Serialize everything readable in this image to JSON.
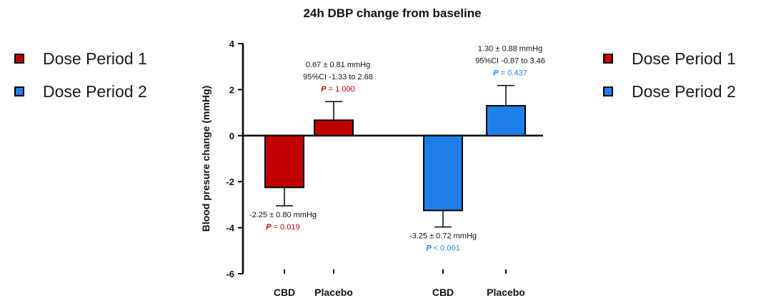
{
  "chart_data": {
    "type": "bar",
    "title": "24h DBP change from baseline",
    "xlabel": "",
    "ylabel": "Blood presure change (mmHg)",
    "ylim": [
      -6,
      4
    ],
    "yticks": [
      "4",
      "2",
      "0",
      "-2",
      "-4",
      "-6"
    ],
    "grid": false,
    "legend_placement": "left and right",
    "legend_left": [
      {
        "label": "Dose Period 1",
        "color": "#c00000"
      },
      {
        "label": "Dose Period 2",
        "color": "#1f7fe8"
      }
    ],
    "legend_right": [
      {
        "label": "Dose Period 1",
        "color": "#c00000"
      },
      {
        "label": "Dose Period 2",
        "color": "#1f7fe8"
      }
    ],
    "bars": [
      {
        "category": "CBD",
        "series": "Dose Period 1",
        "value": -2.25,
        "error": 0.8,
        "color": "#c00000",
        "annotation": {
          "value_text": "-2.25 ± 0.80 mmHg",
          "ci_text": "",
          "p_label": "P",
          "p_rest": " = 0.019",
          "p_color": "#c00000"
        }
      },
      {
        "category": "Placebo",
        "series": "Dose Period 1",
        "value": 0.67,
        "error": 0.81,
        "color": "#c00000",
        "annotation": {
          "value_text": "0.67 ± 0.81 mmHg",
          "ci_text": "95%CI -1.33 to 2.68",
          "p_label": "P",
          "p_rest": " = 1.000",
          "p_color": "#c00000"
        }
      },
      {
        "category": "CBD",
        "series": "Dose Period 2",
        "value": -3.25,
        "error": 0.72,
        "color": "#1f7fe8",
        "annotation": {
          "value_text": "-3.25 ± 0.72 mmHg",
          "ci_text": "",
          "p_label": "P",
          "p_rest": " < 0.001",
          "p_color": "#1f7fe8"
        }
      },
      {
        "category": "Placebo",
        "series": "Dose Period 2",
        "value": 1.3,
        "error": 0.88,
        "color": "#1f7fe8",
        "annotation": {
          "value_text": "1.30 ± 0.88 mmHg",
          "ci_text": "95%CI -0.87 to 3.46",
          "p_label": "P",
          "p_rest": " = 0.437",
          "p_color": "#1f7fe8"
        }
      }
    ]
  }
}
